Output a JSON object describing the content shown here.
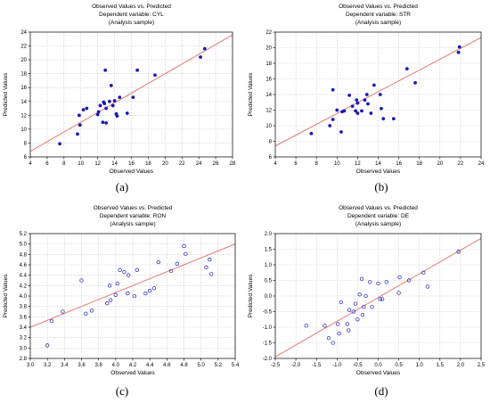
{
  "chart_data": [
    {
      "panel_label": "(a)",
      "type": "scatter",
      "title_lines": [
        "Observed Values vs. Predicted",
        "Dependent variable: CYL",
        "(Analysis sample)"
      ],
      "xlabel": "Observed Values",
      "ylabel": "Predicted Values",
      "xlim": [
        4,
        28
      ],
      "ylim": [
        6,
        24
      ],
      "xticks": [
        4,
        6,
        8,
        10,
        12,
        14,
        16,
        18,
        20,
        22,
        24,
        26,
        28
      ],
      "yticks": [
        6,
        8,
        10,
        12,
        14,
        16,
        18,
        20,
        22,
        24
      ],
      "tick_decimals": 0,
      "grid": true,
      "marker": "filled-dot",
      "marker_color": "#1a1ab8",
      "fit_line": {
        "x": [
          4,
          28
        ],
        "y": [
          6.8,
          23.6
        ],
        "color": "#e27a73"
      },
      "points": [
        [
          7.5,
          7.9
        ],
        [
          9.6,
          9.3
        ],
        [
          9.8,
          12.0
        ],
        [
          9.9,
          10.6
        ],
        [
          10.3,
          12.8
        ],
        [
          10.7,
          13.0
        ],
        [
          12.0,
          12.1
        ],
        [
          12.1,
          12.5
        ],
        [
          12.3,
          13.4
        ],
        [
          12.6,
          11.0
        ],
        [
          12.7,
          13.9
        ],
        [
          12.8,
          13.7
        ],
        [
          12.9,
          18.5
        ],
        [
          13.0,
          13.0
        ],
        [
          13.0,
          10.9
        ],
        [
          13.4,
          14.0
        ],
        [
          13.6,
          16.3
        ],
        [
          13.8,
          13.4
        ],
        [
          14.0,
          14.1
        ],
        [
          14.2,
          12.2
        ],
        [
          14.3,
          11.9
        ],
        [
          14.6,
          14.6
        ],
        [
          15.5,
          12.3
        ],
        [
          16.2,
          14.6
        ],
        [
          16.7,
          18.5
        ],
        [
          18.8,
          17.8
        ],
        [
          24.2,
          20.4
        ],
        [
          24.7,
          21.6
        ]
      ]
    },
    {
      "panel_label": "(b)",
      "type": "scatter",
      "title_lines": [
        "Observed Values vs. Predicted",
        "Dependent variable: STR",
        "(Analysis sample)"
      ],
      "xlabel": "Observed Values",
      "ylabel": "Predicted Values",
      "xlim": [
        4,
        24
      ],
      "ylim": [
        6,
        22
      ],
      "xticks": [
        4,
        6,
        8,
        10,
        12,
        14,
        16,
        18,
        20,
        22,
        24
      ],
      "yticks": [
        6,
        8,
        10,
        12,
        14,
        16,
        18,
        20,
        22
      ],
      "tick_decimals": 0,
      "grid": true,
      "marker": "filled-dot",
      "marker_color": "#1a1ab8",
      "fit_line": {
        "x": [
          4,
          24
        ],
        "y": [
          7.4,
          21.3
        ],
        "color": "#e27a73"
      },
      "points": [
        [
          7.5,
          9.0
        ],
        [
          9.3,
          10.0
        ],
        [
          9.6,
          14.6
        ],
        [
          9.6,
          10.8
        ],
        [
          10.0,
          12.0
        ],
        [
          10.4,
          9.2
        ],
        [
          10.5,
          11.8
        ],
        [
          10.7,
          11.9
        ],
        [
          11.2,
          13.9
        ],
        [
          11.5,
          12.5
        ],
        [
          11.8,
          11.9
        ],
        [
          11.9,
          13.3
        ],
        [
          12.0,
          12.9
        ],
        [
          12.0,
          11.6
        ],
        [
          12.4,
          11.9
        ],
        [
          12.7,
          13.3
        ],
        [
          12.9,
          14.0
        ],
        [
          13.0,
          12.8
        ],
        [
          13.3,
          11.6
        ],
        [
          13.6,
          15.2
        ],
        [
          14.2,
          14.0
        ],
        [
          14.3,
          12.2
        ],
        [
          14.5,
          10.9
        ],
        [
          15.5,
          10.9
        ],
        [
          16.8,
          17.3
        ],
        [
          17.6,
          15.5
        ],
        [
          21.8,
          19.4
        ],
        [
          21.9,
          20.1
        ]
      ]
    },
    {
      "panel_label": "(c)",
      "type": "scatter",
      "title_lines": [
        "Observed Values vs. Predicted",
        "Dependent variable: RON",
        "(Analysis sample)"
      ],
      "xlabel": "Observed Values",
      "ylabel": "Predicted Values",
      "xlim": [
        3.0,
        5.4
      ],
      "ylim": [
        2.8,
        5.2
      ],
      "xticks": [
        3.0,
        3.2,
        3.4,
        3.6,
        3.8,
        4.0,
        4.2,
        4.4,
        4.6,
        4.8,
        5.0,
        5.2,
        5.4
      ],
      "yticks": [
        2.8,
        3.0,
        3.2,
        3.4,
        3.6,
        3.8,
        4.0,
        4.2,
        4.4,
        4.6,
        4.8,
        5.0,
        5.2
      ],
      "tick_decimals": 1,
      "grid": true,
      "marker": "open-circle",
      "marker_color": "#1a1ab8",
      "fit_line": {
        "x": [
          3.0,
          5.4
        ],
        "y": [
          3.4,
          5.0
        ],
        "color": "#e27a73"
      },
      "points": [
        [
          3.2,
          3.05
        ],
        [
          3.25,
          3.52
        ],
        [
          3.38,
          3.7
        ],
        [
          3.6,
          4.3
        ],
        [
          3.65,
          3.66
        ],
        [
          3.72,
          3.72
        ],
        [
          3.9,
          3.86
        ],
        [
          3.93,
          4.2
        ],
        [
          3.94,
          3.92
        ],
        [
          4.0,
          4.02
        ],
        [
          4.02,
          4.24
        ],
        [
          4.05,
          4.5
        ],
        [
          4.1,
          4.46
        ],
        [
          4.14,
          4.05
        ],
        [
          4.15,
          4.4
        ],
        [
          4.22,
          4.0
        ],
        [
          4.25,
          4.5
        ],
        [
          4.35,
          4.05
        ],
        [
          4.4,
          4.1
        ],
        [
          4.45,
          4.15
        ],
        [
          4.5,
          4.65
        ],
        [
          4.65,
          4.48
        ],
        [
          4.72,
          4.62
        ],
        [
          4.8,
          4.96
        ],
        [
          4.82,
          4.81
        ],
        [
          5.06,
          4.55
        ],
        [
          5.1,
          4.7
        ],
        [
          5.12,
          4.42
        ]
      ]
    },
    {
      "panel_label": "(d)",
      "type": "scatter",
      "title_lines": [
        "Observed Values vs. Predicted",
        "Dependent variable: DE",
        "(Analysis sample)"
      ],
      "xlabel": "Observed Values",
      "ylabel": "Predicted Values",
      "xlim": [
        -2.5,
        2.5
      ],
      "ylim": [
        -2.0,
        2.0
      ],
      "xticks": [
        -2.5,
        -2.0,
        -1.5,
        -1.0,
        -0.5,
        0.0,
        0.5,
        1.0,
        1.5,
        2.0,
        2.5
      ],
      "yticks": [
        -2.0,
        -1.5,
        -1.0,
        -0.5,
        0.0,
        0.5,
        1.0,
        1.5,
        2.0
      ],
      "tick_decimals": 1,
      "grid": true,
      "marker": "open-circle",
      "marker_color": "#1a1ab8",
      "fit_line": {
        "x": [
          -2.5,
          2.5
        ],
        "y": [
          -1.95,
          1.85
        ],
        "color": "#e27a73"
      },
      "points": [
        [
          -1.75,
          -0.95
        ],
        [
          -1.3,
          -0.95
        ],
        [
          -1.2,
          -1.35
        ],
        [
          -1.1,
          -1.5
        ],
        [
          -0.98,
          -0.9
        ],
        [
          -0.95,
          -1.2
        ],
        [
          -0.9,
          -0.2
        ],
        [
          -0.75,
          -0.9
        ],
        [
          -0.72,
          -1.1
        ],
        [
          -0.7,
          -0.45
        ],
        [
          -0.6,
          -0.5
        ],
        [
          -0.55,
          -0.25
        ],
        [
          -0.5,
          -0.75
        ],
        [
          -0.45,
          0.05
        ],
        [
          -0.4,
          0.55
        ],
        [
          -0.38,
          -0.6
        ],
        [
          -0.35,
          -0.35
        ],
        [
          -0.3,
          0.0
        ],
        [
          -0.2,
          0.45
        ],
        [
          -0.15,
          -0.35
        ],
        [
          0.0,
          0.4
        ],
        [
          0.05,
          -0.1
        ],
        [
          0.1,
          -0.1
        ],
        [
          0.2,
          0.45
        ],
        [
          0.5,
          0.1
        ],
        [
          0.52,
          0.6
        ],
        [
          0.75,
          0.5
        ],
        [
          1.1,
          0.75
        ],
        [
          1.2,
          0.3
        ],
        [
          1.95,
          1.42
        ]
      ]
    }
  ]
}
